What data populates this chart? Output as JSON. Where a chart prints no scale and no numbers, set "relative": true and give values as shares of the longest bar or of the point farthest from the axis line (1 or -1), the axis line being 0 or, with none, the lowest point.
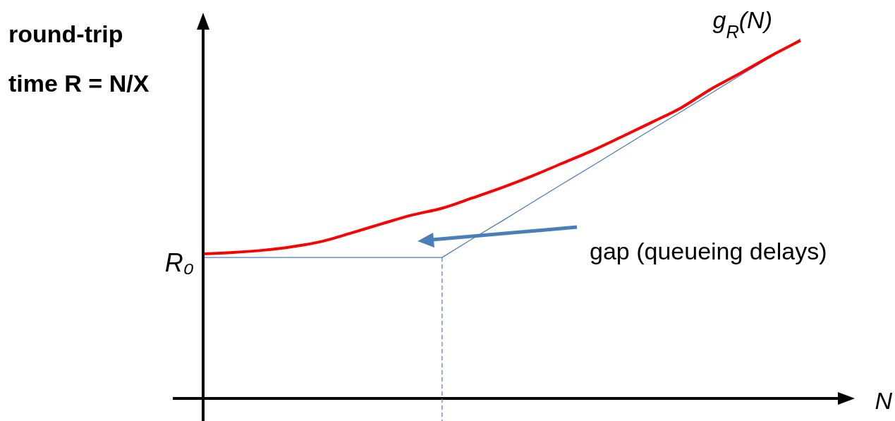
{
  "chart_data": {
    "type": "line",
    "relative": true,
    "xlabel": "N",
    "ylabel": "round-trip time R = N/X",
    "categories": [
      null,
      null,
      null,
      null,
      null,
      null,
      null,
      null,
      null,
      null,
      null,
      null,
      null,
      null,
      null,
      null,
      null,
      null,
      null,
      null,
      null
    ],
    "series": [
      {
        "name": "g$_{R}$(N)",
        "color": "#ff0000",
        "values": [
          0.402,
          0.406,
          0.412,
          0.422,
          0.437,
          0.461,
          0.486,
          0.51,
          0.529,
          0.557,
          0.586,
          0.618,
          0.653,
          0.688,
          0.727,
          0.767,
          0.808,
          0.86,
          0.905,
          0.952,
          0.995
        ]
      },
      {
        "color": "#4a7ebb",
        "values": [
          0.392,
          0.392,
          0.392,
          0.392,
          0.392,
          0.392,
          0.392,
          0.392,
          0.392,
          0.443,
          0.493,
          0.544,
          0.595,
          0.645,
          0.696,
          0.747,
          0.797,
          0.848,
          0.899,
          0.949,
          1
        ]
      }
    ],
    "annotations": [
      "R₀",
      "gap (queueing delays)"
    ],
    "legend": false,
    "marker": "none",
    "line_style": "solid",
    "grid": false
  }
}
